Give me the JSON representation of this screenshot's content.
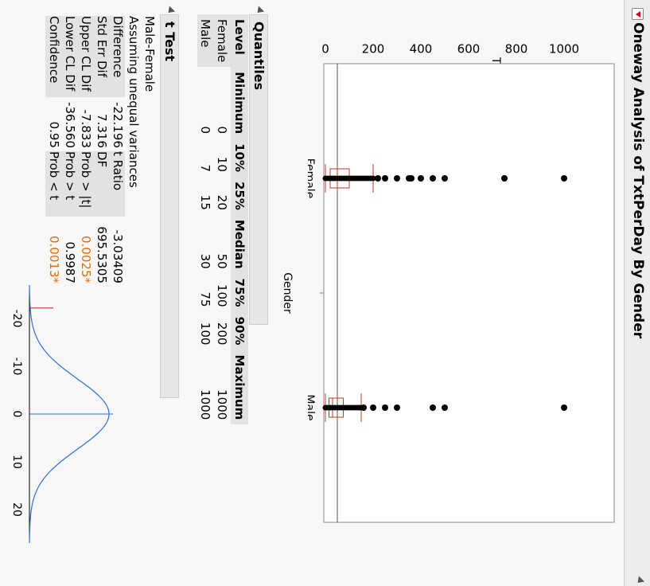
{
  "window": {
    "title": "Oneway Analysis of TxtPerDay By Gender"
  },
  "plot": {
    "y_axis_title": "TxtPerDay",
    "x_axis_title": "Gender",
    "y_ticks": [
      "1000",
      "800",
      "600",
      "400",
      "200",
      "0"
    ],
    "categories": [
      "Female",
      "Male"
    ]
  },
  "chart_data": {
    "type": "box",
    "title": "Oneway Analysis of TxtPerDay By Gender",
    "xlabel": "Gender",
    "ylabel": "TxtPerDay",
    "ylim": [
      0,
      1000
    ],
    "categories": [
      "Female",
      "Male"
    ],
    "grand_mean": 50,
    "series": [
      {
        "name": "Female",
        "min": 0,
        "p10": 10,
        "q1": 20,
        "median": 50,
        "q3": 100,
        "p90": 200,
        "max": 1000,
        "whisker_high": 200,
        "outliers": [
          220,
          250,
          300,
          350,
          360,
          400,
          450,
          500,
          750,
          1000
        ]
      },
      {
        "name": "Male",
        "min": 0,
        "p10": 7,
        "q1": 15,
        "median": 30,
        "q3": 75,
        "p90": 100,
        "max": 1000,
        "whisker_high": 150,
        "outliers": [
          160,
          200,
          250,
          300,
          450,
          500,
          1000
        ]
      }
    ]
  },
  "quantiles": {
    "title": "Quantiles",
    "columns": [
      "Level",
      "Minimum",
      "10%",
      "25%",
      "Median",
      "75%",
      "90%",
      "Maximum"
    ],
    "rows": [
      [
        "Female",
        "0",
        "10",
        "20",
        "50",
        "100",
        "200",
        "1000"
      ],
      [
        "Male",
        "0",
        "7",
        "15",
        "30",
        "75",
        "100",
        "1000"
      ]
    ]
  },
  "ttest": {
    "title": "t Test",
    "comparison": "Male-Female",
    "assumption": "Assuming unequal variances",
    "rows": [
      {
        "label": "Difference",
        "value": "-22.196",
        "label2": "t Ratio",
        "value2": "-3.03409",
        "flag": false
      },
      {
        "label": "Std Err Dif",
        "value": "7.316",
        "label2": "DF",
        "value2": "695.5305",
        "flag": false
      },
      {
        "label": "Upper CL Dif",
        "value": "-7.833",
        "label2": "Prob > |t|",
        "value2": "0.0025*",
        "flag": true
      },
      {
        "label": "Lower CL Dif",
        "value": "-36.560",
        "label2": "Prob > t",
        "value2": "0.9987",
        "flag": false
      },
      {
        "label": "Confidence",
        "value": "0.95",
        "label2": "Prob < t",
        "value2": "0.0013*",
        "flag": true
      }
    ],
    "dist_ticks": [
      "-20",
      "-10",
      "0",
      "10",
      "20"
    ],
    "observed_t": -22.196
  }
}
